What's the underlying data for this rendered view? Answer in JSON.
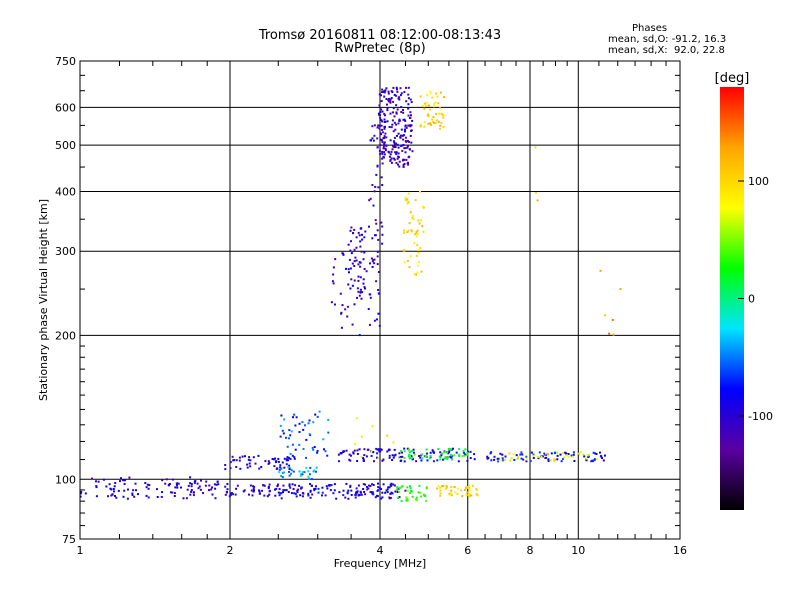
{
  "chart_data": {
    "type": "scatter",
    "title": "Tromsø 20160811 08:12:00-08:13:43",
    "subtitle": "RwPretec (8p)",
    "xlabel": "Frequency [MHz]",
    "ylabel": "Stationary phase Virtual Height [km]",
    "x_scale": "log",
    "y_scale": "log",
    "xlim": [
      1,
      16
    ],
    "ylim": [
      75,
      750
    ],
    "x_ticks": [
      1,
      2,
      4,
      6,
      8,
      10,
      16
    ],
    "y_ticks": [
      75,
      100,
      200,
      300,
      400,
      500,
      600,
      750
    ],
    "grid": true,
    "stats": {
      "heading": "Phases",
      "line_o": "mean, sd,O: -91.2, 16.3",
      "line_x": "mean, sd,X:  92.0, 22.8"
    },
    "colorbar": {
      "label": "[deg]",
      "range": [
        -180,
        180
      ],
      "ticks": [
        100,
        0,
        -100
      ],
      "colors": [
        "#ff0000",
        "#ffa500",
        "#ffff00",
        "#00ff00",
        "#00e5ff",
        "#0000ff",
        "#5a00a0",
        "#000000"
      ]
    },
    "segments": [
      {
        "f": [
          1.0,
          1.9
        ],
        "h": [
          91,
          101
        ],
        "n": 110,
        "phase": -100
      },
      {
        "f": [
          1.95,
          3.0
        ],
        "h": [
          92,
          98
        ],
        "n": 70,
        "phase": -95
      },
      {
        "f": [
          1.95,
          2.7
        ],
        "h": [
          105,
          112
        ],
        "n": 55,
        "phase": -100
      },
      {
        "f": [
          2.5,
          3.2
        ],
        "h": [
          110,
          140
        ],
        "n": 50,
        "phase": -60
      },
      {
        "f": [
          2.5,
          3.0
        ],
        "h": [
          100,
          106
        ],
        "n": 30,
        "phase": -40
      },
      {
        "f": [
          2.4,
          4.0
        ],
        "h": [
          91,
          98
        ],
        "n": 60,
        "phase": -90
      },
      {
        "f": [
          3.3,
          6.2
        ],
        "h": [
          109,
          116
        ],
        "n": 120,
        "phase": -95
      },
      {
        "f": [
          4.4,
          6.0
        ],
        "h": [
          110,
          116
        ],
        "n": 50,
        "phase": 20
      },
      {
        "f": [
          6.5,
          11.5
        ],
        "h": [
          109,
          114
        ],
        "n": 80,
        "phase": -80
      },
      {
        "f": [
          7.0,
          11.0
        ],
        "h": [
          109,
          114
        ],
        "n": 30,
        "phase": 80
      },
      {
        "f": [
          3.4,
          4.5
        ],
        "h": [
          91,
          98
        ],
        "n": 60,
        "phase": -95
      },
      {
        "f": [
          4.3,
          5.0
        ],
        "h": [
          90,
          97
        ],
        "n": 35,
        "phase": 30
      },
      {
        "f": [
          5.2,
          6.3
        ],
        "h": [
          92,
          97
        ],
        "n": 45,
        "phase": 100
      },
      {
        "f": [
          3.15,
          4.0
        ],
        "h": [
          200,
          300
        ],
        "n": 60,
        "phase": -100
      },
      {
        "f": [
          3.45,
          3.75
        ],
        "h": [
          245,
          340
        ],
        "n": 45,
        "phase": -100
      },
      {
        "f": [
          3.8,
          4.05
        ],
        "h": [
          290,
          560
        ],
        "n": 45,
        "phase": -105
      },
      {
        "f": [
          3.98,
          4.65
        ],
        "h": [
          450,
          660
        ],
        "n": 220,
        "phase": -110
      },
      {
        "f": [
          4.45,
          4.9
        ],
        "h": [
          265,
          400
        ],
        "n": 50,
        "phase": 100
      },
      {
        "f": [
          4.8,
          5.4
        ],
        "h": [
          540,
          650
        ],
        "n": 50,
        "phase": 100
      },
      {
        "f": [
          11.0,
          12.5
        ],
        "h": [
          180,
          290
        ],
        "n": 6,
        "phase": 130
      },
      {
        "f": [
          8.0,
          8.3
        ],
        "h": [
          360,
          570
        ],
        "n": 3,
        "phase": 110
      },
      {
        "f": [
          3.5,
          4.5
        ],
        "h": [
          108,
          135
        ],
        "n": 10,
        "phase": 90
      }
    ]
  }
}
